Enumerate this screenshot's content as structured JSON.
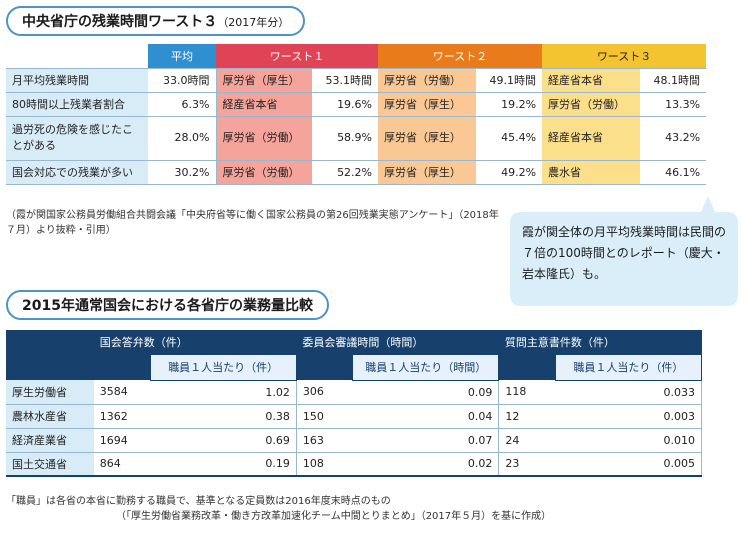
{
  "title1": {
    "main": "中央省庁の残業時間ワースト３",
    "sub": "（2017年分）"
  },
  "table1": {
    "headers": [
      "",
      "平均",
      "ワースト１",
      "ワースト２",
      "ワースト３"
    ],
    "rows": [
      {
        "label": "月平均残業時間",
        "avg": "33.0時間",
        "w1": [
          "厚労省（厚生）",
          "53.1時間"
        ],
        "w2": [
          "厚労省（労働）",
          "49.1時間"
        ],
        "w3": [
          "経産省本省",
          "48.1時間"
        ]
      },
      {
        "label": "80時間以上残業者割合",
        "avg": "6.3%",
        "w1": [
          "経産省本省",
          "19.6%"
        ],
        "w2": [
          "厚労省（厚生）",
          "19.2%"
        ],
        "w3": [
          "厚労省（労働）",
          "13.3%"
        ]
      },
      {
        "label": "過労死の危険を感じたことがある",
        "avg": "28.0%",
        "w1": [
          "厚労省（労働）",
          "58.9%"
        ],
        "w2": [
          "厚労省（厚生）",
          "45.4%"
        ],
        "w3": [
          "経産省本省",
          "43.2%"
        ]
      },
      {
        "label": "国会対応での残業が多い",
        "avg": "30.2%",
        "w1": [
          "厚労省（労働）",
          "52.2%"
        ],
        "w2": [
          "厚労省（厚生）",
          "49.2%"
        ],
        "w3": [
          "農水省",
          "46.1%"
        ]
      }
    ]
  },
  "note1": "（霞が関国家公務員労働組合共闘会議「中央府省等に働く国家公務員の第26回残業実態アンケート」（2018年７月）より抜粋・引用）",
  "bubble": "霞が関全体の月平均残業時間は民間の７倍の100時間とのレポート（慶大・岩本隆氏）も。",
  "title2": "2015年通常国会における各省庁の業務量比較",
  "table2": {
    "groups": [
      "国会答弁数（件）",
      "委員会審議時間（時間）",
      "質問主意書件数（件）"
    ],
    "subheaders": [
      "職員１人当たり（件）",
      "職員１人当たり（時間）",
      "職員１人当たり（件）"
    ],
    "rows": [
      {
        "label": "厚生労働省",
        "v": [
          "3584",
          "1.02",
          "306",
          "0.09",
          "118",
          "0.033"
        ]
      },
      {
        "label": "農林水産省",
        "v": [
          "1362",
          "0.38",
          "150",
          "0.04",
          "12",
          "0.003"
        ]
      },
      {
        "label": "経済産業省",
        "v": [
          "1694",
          "0.69",
          "163",
          "0.07",
          "24",
          "0.010"
        ]
      },
      {
        "label": "国土交通省",
        "v": [
          "864",
          "0.19",
          "108",
          "0.02",
          "23",
          "0.005"
        ]
      }
    ]
  },
  "note2_line1": "「職員」は各省の本省に勤務する職員で、基準となる定員数は2016年度末時点のもの",
  "note2_line2": "（「厚生労働省業務改革・働き方改革加速化チーム中間とりまとめ」（2017年５月）を基に作成）"
}
